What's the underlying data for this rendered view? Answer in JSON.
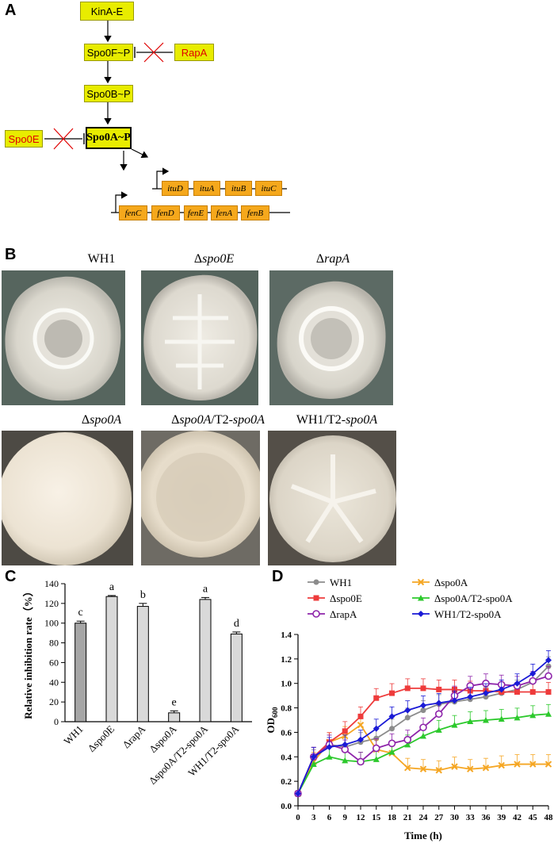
{
  "panels": {
    "a": "A",
    "b": "B",
    "c": "C",
    "d": "D"
  },
  "pathway": {
    "kina": "KinA-E",
    "spo0f": "Spo0F~P",
    "rapa": "RapA",
    "spo0b": "Spo0B~P",
    "spo0e": "Spo0E",
    "spo0a": "Spo0A~P",
    "itu_genes": [
      "ituD",
      "ituA",
      "ituB",
      "ituC"
    ],
    "fen_genes": [
      "fenC",
      "fenD",
      "fenE",
      "fenA",
      "fenB"
    ]
  },
  "colonies": [
    {
      "label_prefix": "WH1",
      "label_delta": "",
      "label_italic": "",
      "label_suffix": ""
    },
    {
      "label_prefix": "",
      "label_delta": "Δ",
      "label_italic": "spo0E",
      "label_suffix": ""
    },
    {
      "label_prefix": "",
      "label_delta": "Δ",
      "label_italic": "rapA",
      "label_suffix": ""
    },
    {
      "label_prefix": "",
      "label_delta": "Δ",
      "label_italic": "spo0A",
      "label_suffix": ""
    },
    {
      "label_prefix": "",
      "label_delta": "Δ",
      "label_italic": "spo0A",
      "label_suffix": "/T2-spo0A"
    },
    {
      "label_prefix": "WH1/T2-",
      "label_delta": "",
      "label_italic": "spo0A",
      "label_suffix": ""
    }
  ],
  "chart_data": [
    {
      "type": "bar",
      "ylabel": "Relative inhibition rate（%）",
      "ylim": [
        0,
        140
      ],
      "yticks": [
        "0",
        "20",
        "40",
        "60",
        "80",
        "100",
        "120",
        "140"
      ],
      "categories": [
        "WH1",
        "Δspo0E",
        "ΔrapA",
        "Δspo0A",
        "Δspo0A/T2-spo0A",
        "WH1/T2-spo0A"
      ],
      "values": [
        100,
        127,
        117,
        9,
        124,
        89
      ],
      "errors": [
        2,
        1,
        3,
        2,
        2,
        2
      ],
      "letters": [
        "c",
        "a",
        "b",
        "e",
        "a",
        "d"
      ],
      "bar_colors": [
        "#a6a6a6",
        "#d9d9d9",
        "#d9d9d9",
        "#d9d9d9",
        "#d9d9d9",
        "#d9d9d9"
      ]
    },
    {
      "type": "line",
      "xlabel": "Time (h)",
      "ylabel": "OD600",
      "ylabel_main": "OD",
      "ylabel_sub": "600",
      "xlim": [
        0,
        48
      ],
      "ylim": [
        0,
        1.4
      ],
      "xticks": [
        "0",
        "3",
        "6",
        "9",
        "12",
        "15",
        "18",
        "21",
        "24",
        "27",
        "30",
        "33",
        "36",
        "39",
        "42",
        "45",
        "48"
      ],
      "yticks": [
        "0.0",
        "0.2",
        "0.4",
        "0.6",
        "0.8",
        "1.0",
        "1.2",
        "1.4"
      ],
      "x": [
        0,
        3,
        6,
        9,
        12,
        15,
        18,
        21,
        24,
        27,
        30,
        33,
        36,
        39,
        42,
        45,
        48
      ],
      "legend_placement": "top-left",
      "series": [
        {
          "name": "WH1",
          "color": "#8c8c8c",
          "marker": "circle",
          "values": [
            0.1,
            0.38,
            0.5,
            0.48,
            0.52,
            0.55,
            0.63,
            0.72,
            0.78,
            0.83,
            0.85,
            0.87,
            0.89,
            0.92,
            0.95,
            1.01,
            1.14
          ]
        },
        {
          "name": "Δspo0A",
          "color": "#f5a623",
          "marker": "x",
          "values": [
            0.1,
            0.36,
            0.52,
            0.57,
            0.66,
            0.46,
            0.43,
            0.31,
            0.3,
            0.29,
            0.32,
            0.3,
            0.31,
            0.33,
            0.34,
            0.34,
            0.34
          ]
        },
        {
          "name": "Δspo0E",
          "color": "#ee3b3b",
          "marker": "square",
          "values": [
            0.1,
            0.4,
            0.52,
            0.61,
            0.73,
            0.88,
            0.92,
            0.96,
            0.96,
            0.95,
            0.95,
            0.94,
            0.94,
            0.93,
            0.93,
            0.93,
            0.93
          ]
        },
        {
          "name": "Δspo0A/T2-spo0A",
          "color": "#2cc92c",
          "marker": "triangle",
          "values": [
            0.1,
            0.34,
            0.4,
            0.37,
            0.36,
            0.38,
            0.44,
            0.5,
            0.57,
            0.62,
            0.66,
            0.69,
            0.7,
            0.71,
            0.72,
            0.74,
            0.75
          ]
        },
        {
          "name": "ΔrapA",
          "color": "#8e24aa",
          "marker": "open-circle",
          "values": [
            0.1,
            0.4,
            0.5,
            0.46,
            0.36,
            0.47,
            0.51,
            0.54,
            0.64,
            0.75,
            0.9,
            0.98,
            1.0,
            0.99,
            0.98,
            1.02,
            1.06
          ]
        },
        {
          "name": "WH1/T2-spo0A",
          "color": "#1a1ad6",
          "marker": "diamond",
          "values": [
            0.1,
            0.4,
            0.48,
            0.5,
            0.54,
            0.63,
            0.73,
            0.78,
            0.82,
            0.84,
            0.86,
            0.89,
            0.92,
            0.95,
            1.0,
            1.08,
            1.19
          ]
        }
      ]
    }
  ]
}
